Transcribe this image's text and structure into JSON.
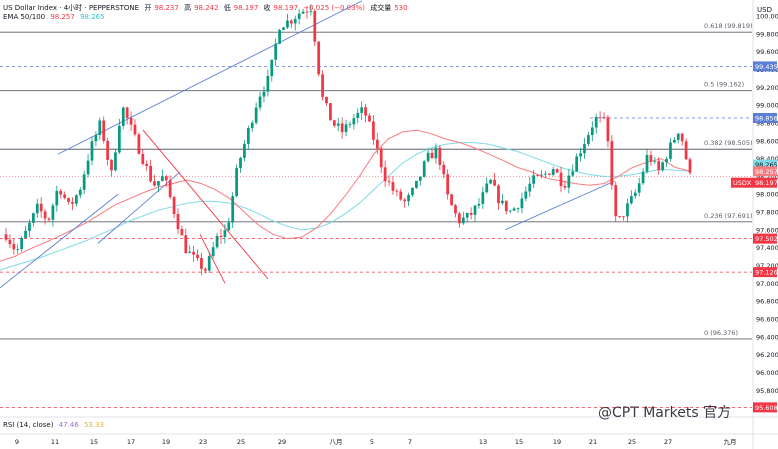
{
  "header": {
    "symbol": "US Dollar Index · 4小时 · PEPPERSTONE",
    "open_label": "开",
    "open": "98.237",
    "high_label": "高",
    "high": "98.242",
    "low_label": "低",
    "low": "98.197",
    "close_label": "收",
    "close": "98.197",
    "change": "−0.025 (−0.03%)",
    "volume_label": "成交量",
    "volume": "530"
  },
  "ema": {
    "label": "EMA 50/100",
    "v50": "98.257",
    "v100": "98.265"
  },
  "rsi": {
    "label": "RSI (14, close)",
    "v1": "47.46",
    "v2": "53.33"
  },
  "watermark": "@CPT Markets 官方",
  "colors": {
    "up": "#089981",
    "down": "#f23645",
    "ema50": "#f77c80",
    "ema100": "#7fdbe6",
    "trend": "#5b7fd6"
  },
  "chart_data": {
    "type": "candlestick",
    "currency_label": "USD",
    "ylim": [
      95.5,
      100.18
    ],
    "y_ticks": [
      "100.000",
      "99.800",
      "99.600",
      "99.400",
      "99.200",
      "99.000",
      "98.800",
      "98.600",
      "98.400",
      "98.200",
      "98.000",
      "97.800",
      "97.600",
      "97.400",
      "97.200",
      "97.000",
      "96.800",
      "96.600",
      "96.400",
      "96.200",
      "96.000",
      "95.800"
    ],
    "x_ticks": [
      "9",
      "11",
      "15",
      "17",
      "19",
      "23",
      "25",
      "29",
      "八月",
      "5",
      "7",
      "13",
      "15",
      "19",
      "21",
      "25",
      "27",
      "九月"
    ],
    "fib_levels": [
      {
        "label": "0.618 (99.819)",
        "value": 99.819
      },
      {
        "label": "0.5 (99.162)",
        "value": 99.162
      },
      {
        "label": "0.382 (98.505)",
        "value": 98.505
      },
      {
        "label": "0.236 (97.691)",
        "value": 97.691
      },
      {
        "label": "0 (96.376)",
        "value": 96.376
      }
    ],
    "horizontal_levels": [
      {
        "label": "99.435",
        "value": 99.435,
        "style": "dashed-blue"
      },
      {
        "label": "98.856",
        "value": 98.856,
        "style": "dashed-blue"
      },
      {
        "label": "97.502",
        "value": 97.502,
        "style": "dashed-red"
      },
      {
        "label": "97.126",
        "value": 97.126,
        "style": "dashed-red"
      },
      {
        "label": "95.608",
        "value": 95.608,
        "style": "dashed-red"
      }
    ],
    "price_tags": [
      {
        "label": "98.265",
        "value": 98.265,
        "color": "#7fdbe6"
      },
      {
        "label": "98.257",
        "value": 98.257,
        "color": "#f77c80"
      },
      {
        "label": "98.197",
        "value": 98.197,
        "color": "#f23645",
        "prefix": "USDX"
      }
    ],
    "price_path": [
      97.55,
      97.35,
      97.6,
      97.85,
      97.7,
      98.1,
      97.85,
      98.05,
      98.5,
      98.8,
      98.2,
      99.0,
      98.7,
      98.4,
      98.1,
      98.2,
      97.8,
      97.4,
      97.25,
      97.15,
      97.5,
      97.6,
      98.3,
      98.7,
      99.1,
      99.3,
      99.9,
      99.95,
      100.05,
      100.1,
      99.1,
      98.8,
      98.7,
      98.85,
      98.95,
      98.6,
      98.2,
      98.0,
      97.9,
      98.1,
      98.4,
      98.5,
      97.95,
      97.7,
      97.75,
      97.9,
      98.15,
      97.9,
      97.8,
      97.95,
      98.15,
      98.2,
      98.3,
      98.1,
      98.35,
      98.6,
      98.85,
      98.8,
      97.65,
      97.85,
      98.05,
      98.45,
      98.25,
      98.5,
      98.75,
      98.2
    ],
    "ema50_path": [
      97.25,
      97.3,
      97.38,
      97.45,
      97.52,
      97.6,
      97.68,
      97.78,
      97.88,
      97.95,
      98.02,
      98.08,
      98.12,
      98.16,
      98.12,
      98.05,
      97.95,
      97.8,
      97.65,
      97.55,
      97.5,
      97.52,
      97.62,
      97.78,
      97.98,
      98.2,
      98.45,
      98.62,
      98.7,
      98.72,
      98.68,
      98.62,
      98.58,
      98.52,
      98.45,
      98.38,
      98.3,
      98.25,
      98.18,
      98.15,
      98.12,
      98.1,
      98.12,
      98.2,
      98.3,
      98.36,
      98.4,
      98.3,
      98.26
    ],
    "ema100_path": [
      97.15,
      97.2,
      97.25,
      97.3,
      97.36,
      97.42,
      97.48,
      97.55,
      97.62,
      97.7,
      97.76,
      97.82,
      97.86,
      97.9,
      97.92,
      97.92,
      97.9,
      97.85,
      97.78,
      97.7,
      97.64,
      97.6,
      97.62,
      97.68,
      97.78,
      97.9,
      98.05,
      98.2,
      98.35,
      98.45,
      98.52,
      98.56,
      98.58,
      98.58,
      98.56,
      98.52,
      98.48,
      98.42,
      98.36,
      98.3,
      98.26,
      98.22,
      98.2,
      98.2,
      98.22,
      98.25,
      98.28,
      98.27,
      98.26
    ],
    "trendlines": [
      {
        "from": [
          0,
          96.95
        ],
        "to": [
          118,
          98.0
        ]
      },
      {
        "from": [
          58,
          98.45
        ],
        "to": [
          362,
          100.17
        ]
      },
      {
        "from": [
          143,
          98.72
        ],
        "to": [
          268,
          97.05
        ]
      },
      {
        "from": [
          98,
          97.45
        ],
        "to": [
          180,
          98.25
        ]
      },
      {
        "from": [
          200,
          97.55
        ],
        "to": [
          225,
          97.0
        ]
      },
      {
        "from": [
          505,
          97.6
        ],
        "to": [
          615,
          98.15
        ]
      }
    ]
  }
}
